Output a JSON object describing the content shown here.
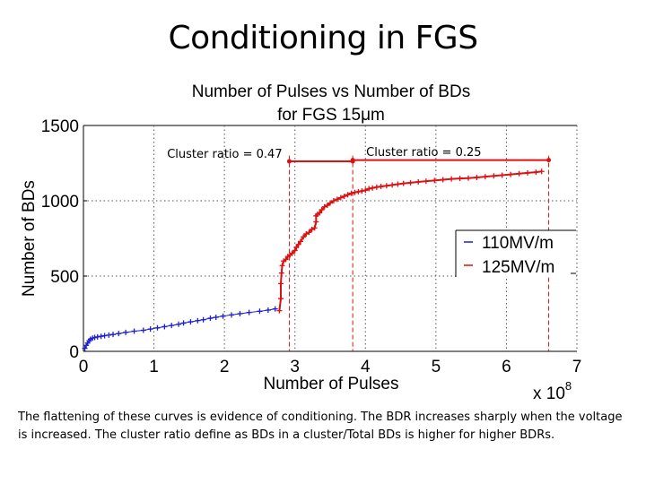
{
  "slide": {
    "title": "Conditioning in FGS",
    "caption": "The flattening of these curves is evidence of conditioning.  The BDR increases sharply when the voltage is increased.  The cluster ratio define as BDs in a cluster/Total BDs is higher for higher BDRs."
  },
  "chart_data": {
    "type": "scatter",
    "title_line1": "Number of Pulses vs Number of BDs",
    "title_line2_prefix": "for FGS 15",
    "title_line2_symbol": "μ",
    "title_line2_suffix": "m",
    "xlabel": "Number of Pulses",
    "ylabel": "Number of BDs",
    "x_multiplier_base": "x 10",
    "x_multiplier_exp": "8",
    "xlim": [
      0,
      7
    ],
    "ylim": [
      0,
      1500
    ],
    "x_ticks": [
      "0",
      "1",
      "2",
      "3",
      "4",
      "5",
      "6",
      "7"
    ],
    "y_ticks": [
      "0",
      "500",
      "1000",
      "1500"
    ],
    "colors": {
      "series_110": "#1f1fd0",
      "series_125": "#dd1111",
      "annotation": "#dd1111",
      "grid": "#555555"
    },
    "series": [
      {
        "name": "110MV/m",
        "color_key": "series_110",
        "marker": "plus",
        "x": [
          0.02,
          0.04,
          0.06,
          0.08,
          0.1,
          0.13,
          0.16,
          0.2,
          0.25,
          0.3,
          0.36,
          0.42,
          0.5,
          0.6,
          0.72,
          0.85,
          0.95,
          1.05,
          1.15,
          1.25,
          1.35,
          1.42,
          1.52,
          1.62,
          1.7,
          1.8,
          1.88,
          1.98,
          2.1,
          2.22,
          2.35,
          2.5,
          2.62,
          2.72
        ],
        "y": [
          20,
          40,
          55,
          70,
          80,
          88,
          92,
          96,
          100,
          104,
          108,
          112,
          118,
          126,
          134,
          140,
          148,
          156,
          164,
          172,
          180,
          188,
          196,
          204,
          210,
          220,
          226,
          234,
          242,
          250,
          258,
          266,
          274,
          282
        ]
      },
      {
        "name": "125MV/m",
        "color_key": "series_125",
        "marker": "plus",
        "x": [
          2.78,
          2.8,
          2.8,
          2.81,
          2.82,
          2.84,
          2.87,
          2.9,
          2.93,
          2.96,
          3.0,
          3.02,
          3.05,
          3.08,
          3.12,
          3.16,
          3.2,
          3.24,
          3.28,
          3.3,
          3.3,
          3.32,
          3.35,
          3.38,
          3.42,
          3.46,
          3.5,
          3.55,
          3.6,
          3.65,
          3.7,
          3.75,
          3.8,
          3.85,
          3.9,
          3.95,
          4.0,
          4.05,
          4.1,
          4.16,
          4.22,
          4.3,
          4.38,
          4.46,
          4.54,
          4.64,
          4.75,
          4.86,
          4.98,
          5.1,
          5.22,
          5.34,
          5.46,
          5.58,
          5.7,
          5.82,
          5.94,
          6.06,
          6.18,
          6.3,
          6.42,
          6.5
        ],
        "y": [
          270,
          350,
          450,
          520,
          570,
          600,
          610,
          630,
          640,
          650,
          670,
          690,
          710,
          730,
          760,
          780,
          790,
          810,
          820,
          860,
          900,
          910,
          920,
          940,
          960,
          970,
          985,
          1000,
          1010,
          1020,
          1030,
          1040,
          1050,
          1055,
          1060,
          1065,
          1070,
          1080,
          1085,
          1090,
          1095,
          1100,
          1105,
          1110,
          1115,
          1120,
          1125,
          1130,
          1135,
          1140,
          1145,
          1148,
          1150,
          1155,
          1160,
          1165,
          1170,
          1175,
          1180,
          1185,
          1190,
          1195
        ]
      }
    ],
    "vlines": [
      2.92,
      3.82,
      6.6
    ],
    "cluster_annotations": [
      {
        "label": "Cluster ratio = 0.47",
        "x_start": 2.92,
        "x_end": 3.82,
        "y": 1262
      },
      {
        "label": "Cluster ratio = 0.25",
        "x_start": 3.82,
        "x_end": 6.6,
        "y": 1270
      }
    ],
    "legend_position": "right-middle"
  }
}
